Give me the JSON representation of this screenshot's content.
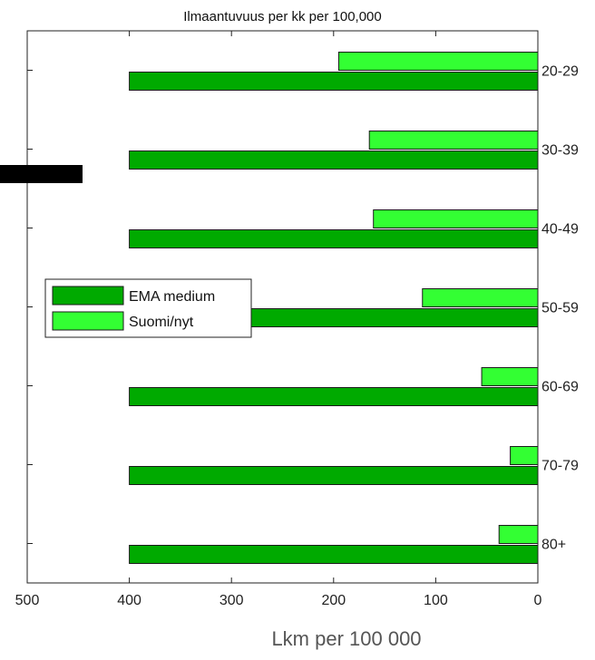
{
  "chart_data": {
    "type": "bar",
    "orientation": "horizontal",
    "title": "Ilmaantuvuus per kk per 100,000",
    "xlabel": "Lkm per 100 000",
    "ylabel": "",
    "categories": [
      "20-29",
      "30-39",
      "40-49",
      "50-59",
      "60-69",
      "70-79",
      "80+"
    ],
    "series": [
      {
        "name": "EMA medium",
        "values": [
          400,
          400,
          400,
          400,
          400,
          400,
          400
        ],
        "color": "#00aa00"
      },
      {
        "name": "Suomi/nyt",
        "values": [
          195,
          165,
          161,
          113,
          55,
          27,
          38
        ],
        "color": "#33ff33"
      }
    ],
    "xlim": [
      500,
      0
    ],
    "x_reversed": true,
    "xticks": [
      500,
      400,
      300,
      200,
      100,
      0
    ],
    "category_axis_side": "right",
    "legend_placement": "middle-left",
    "grid": false,
    "colors": {
      "axis": "#222222",
      "bar_stroke": "#1a1a1a"
    }
  }
}
